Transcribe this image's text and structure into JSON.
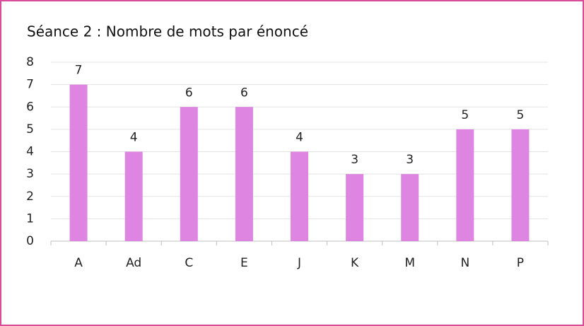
{
  "chart_data": {
    "type": "bar",
    "title": "Séance 2 : Nombre de mots par énoncé",
    "categories": [
      "A",
      "Ad",
      "C",
      "E",
      "J",
      "K",
      "M",
      "N",
      "P"
    ],
    "values": [
      7,
      4,
      6,
      6,
      4,
      3,
      3,
      5,
      5
    ],
    "color": "#dd85e0",
    "ylim": [
      0,
      8
    ],
    "yticks": [
      0,
      1,
      2,
      3,
      4,
      5,
      6,
      7,
      8
    ],
    "grid": true
  }
}
